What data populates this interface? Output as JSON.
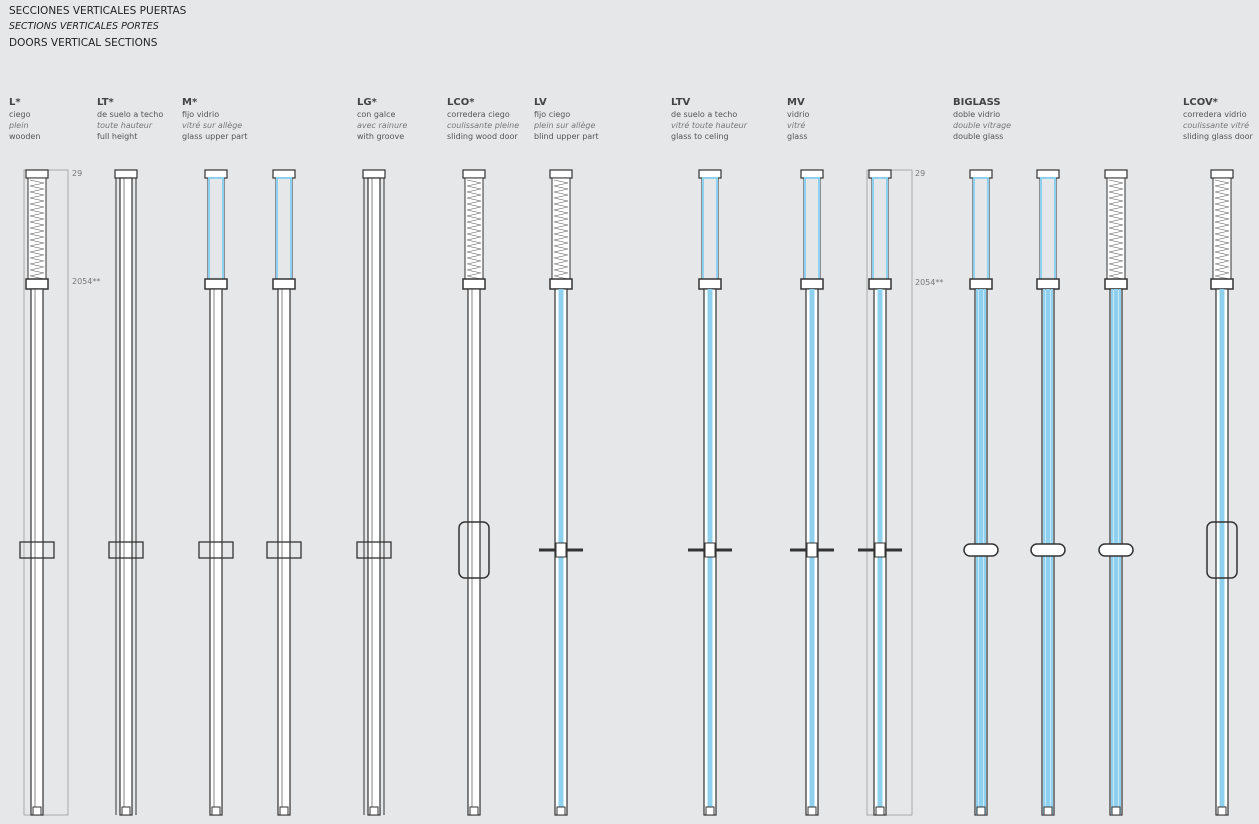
{
  "header": {
    "title_es": "SECCIONES VERTICALES PUERTAS",
    "title_fr": "SECTIONS VERTICALES PORTES",
    "title_en": "DOORS VERTICAL SECTIONS"
  },
  "types": [
    {
      "code": "L*",
      "es": "ciego",
      "fr": "plein",
      "en": "wooden"
    },
    {
      "code": "LT*",
      "es": "de suelo a techo",
      "fr": "toute hauteur",
      "en": "full height"
    },
    {
      "code": "M*",
      "es": "fijo vidrio",
      "fr": "vitré sur allège",
      "en": "glass upper part"
    },
    {
      "code": "LG*",
      "es": "con galce",
      "fr": "avec rainure",
      "en": "with groove"
    },
    {
      "code": "LCO*",
      "es": "corredera ciego",
      "fr": "coulissante pleine",
      "en": "sliding wood door"
    },
    {
      "code": "LV",
      "es": "fijo ciego",
      "fr": "plein sur allège",
      "en": "blind upper part"
    },
    {
      "code": "LTV",
      "es": "de suelo a techo",
      "fr": "vitré toute hauteur",
      "en": "glass to celing"
    },
    {
      "code": "MV",
      "es": "vidrio",
      "fr": "vitré",
      "en": "glass"
    },
    {
      "code": "BIGLASS",
      "es": "doble vidrio",
      "fr": "double vitrage",
      "en": "double glass"
    },
    {
      "code": "LCOV*",
      "es": "corredera vidrio",
      "fr": "coulissante vitré",
      "en": "sliding glass door"
    }
  ],
  "dimensions": {
    "top": "29",
    "transom": "2054**"
  },
  "colors": {
    "glass": "#8fd0ee",
    "line": "#333333",
    "frame": "#9a9a9a",
    "background": "#e6e7e8"
  }
}
